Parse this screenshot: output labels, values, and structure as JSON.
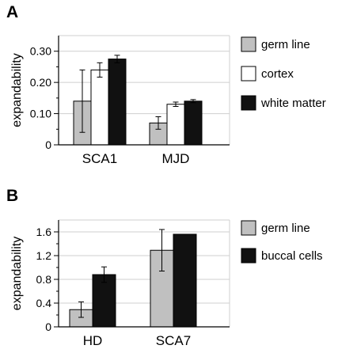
{
  "chart_data": [
    {
      "panel_label": "A",
      "type": "bar",
      "ylabel": "expandability",
      "ylim": [
        0,
        0.35
      ],
      "yticks": [
        0,
        0.1,
        0.2,
        0.3
      ],
      "ytick_labels": [
        "0",
        "0.10",
        "0.20",
        "0.30"
      ],
      "categories": [
        "SCA1",
        "MJD"
      ],
      "grid": true,
      "legend_position": "right",
      "series": [
        {
          "name": "germ line",
          "color": "#c0c0c0",
          "values": [
            0.14,
            0.07
          ],
          "error": [
            0.1,
            0.02
          ]
        },
        {
          "name": "cortex",
          "color": "#ffffff",
          "values": [
            0.24,
            0.13
          ],
          "error": [
            0.023,
            0.007
          ]
        },
        {
          "name": "white matter",
          "color": "#111111",
          "values": [
            0.275,
            0.14
          ],
          "error": [
            0.012,
            0.005
          ]
        }
      ]
    },
    {
      "panel_label": "B",
      "type": "bar",
      "ylabel": "expandability",
      "ylim": [
        0,
        1.8
      ],
      "yticks": [
        0,
        0.4,
        0.8,
        1.2,
        1.6
      ],
      "ytick_labels": [
        "0",
        "0.4",
        "0.8",
        "1.2",
        "1.6"
      ],
      "categories": [
        "HD",
        "SCA7"
      ],
      "grid": true,
      "legend_position": "right",
      "series": [
        {
          "name": "germ line",
          "color": "#c0c0c0",
          "values": [
            0.29,
            1.29
          ],
          "error": [
            0.13,
            0.35
          ]
        },
        {
          "name": "buccal cells",
          "color": "#111111",
          "values": [
            0.88,
            1.56
          ],
          "error": [
            0.13,
            0
          ]
        }
      ]
    }
  ]
}
